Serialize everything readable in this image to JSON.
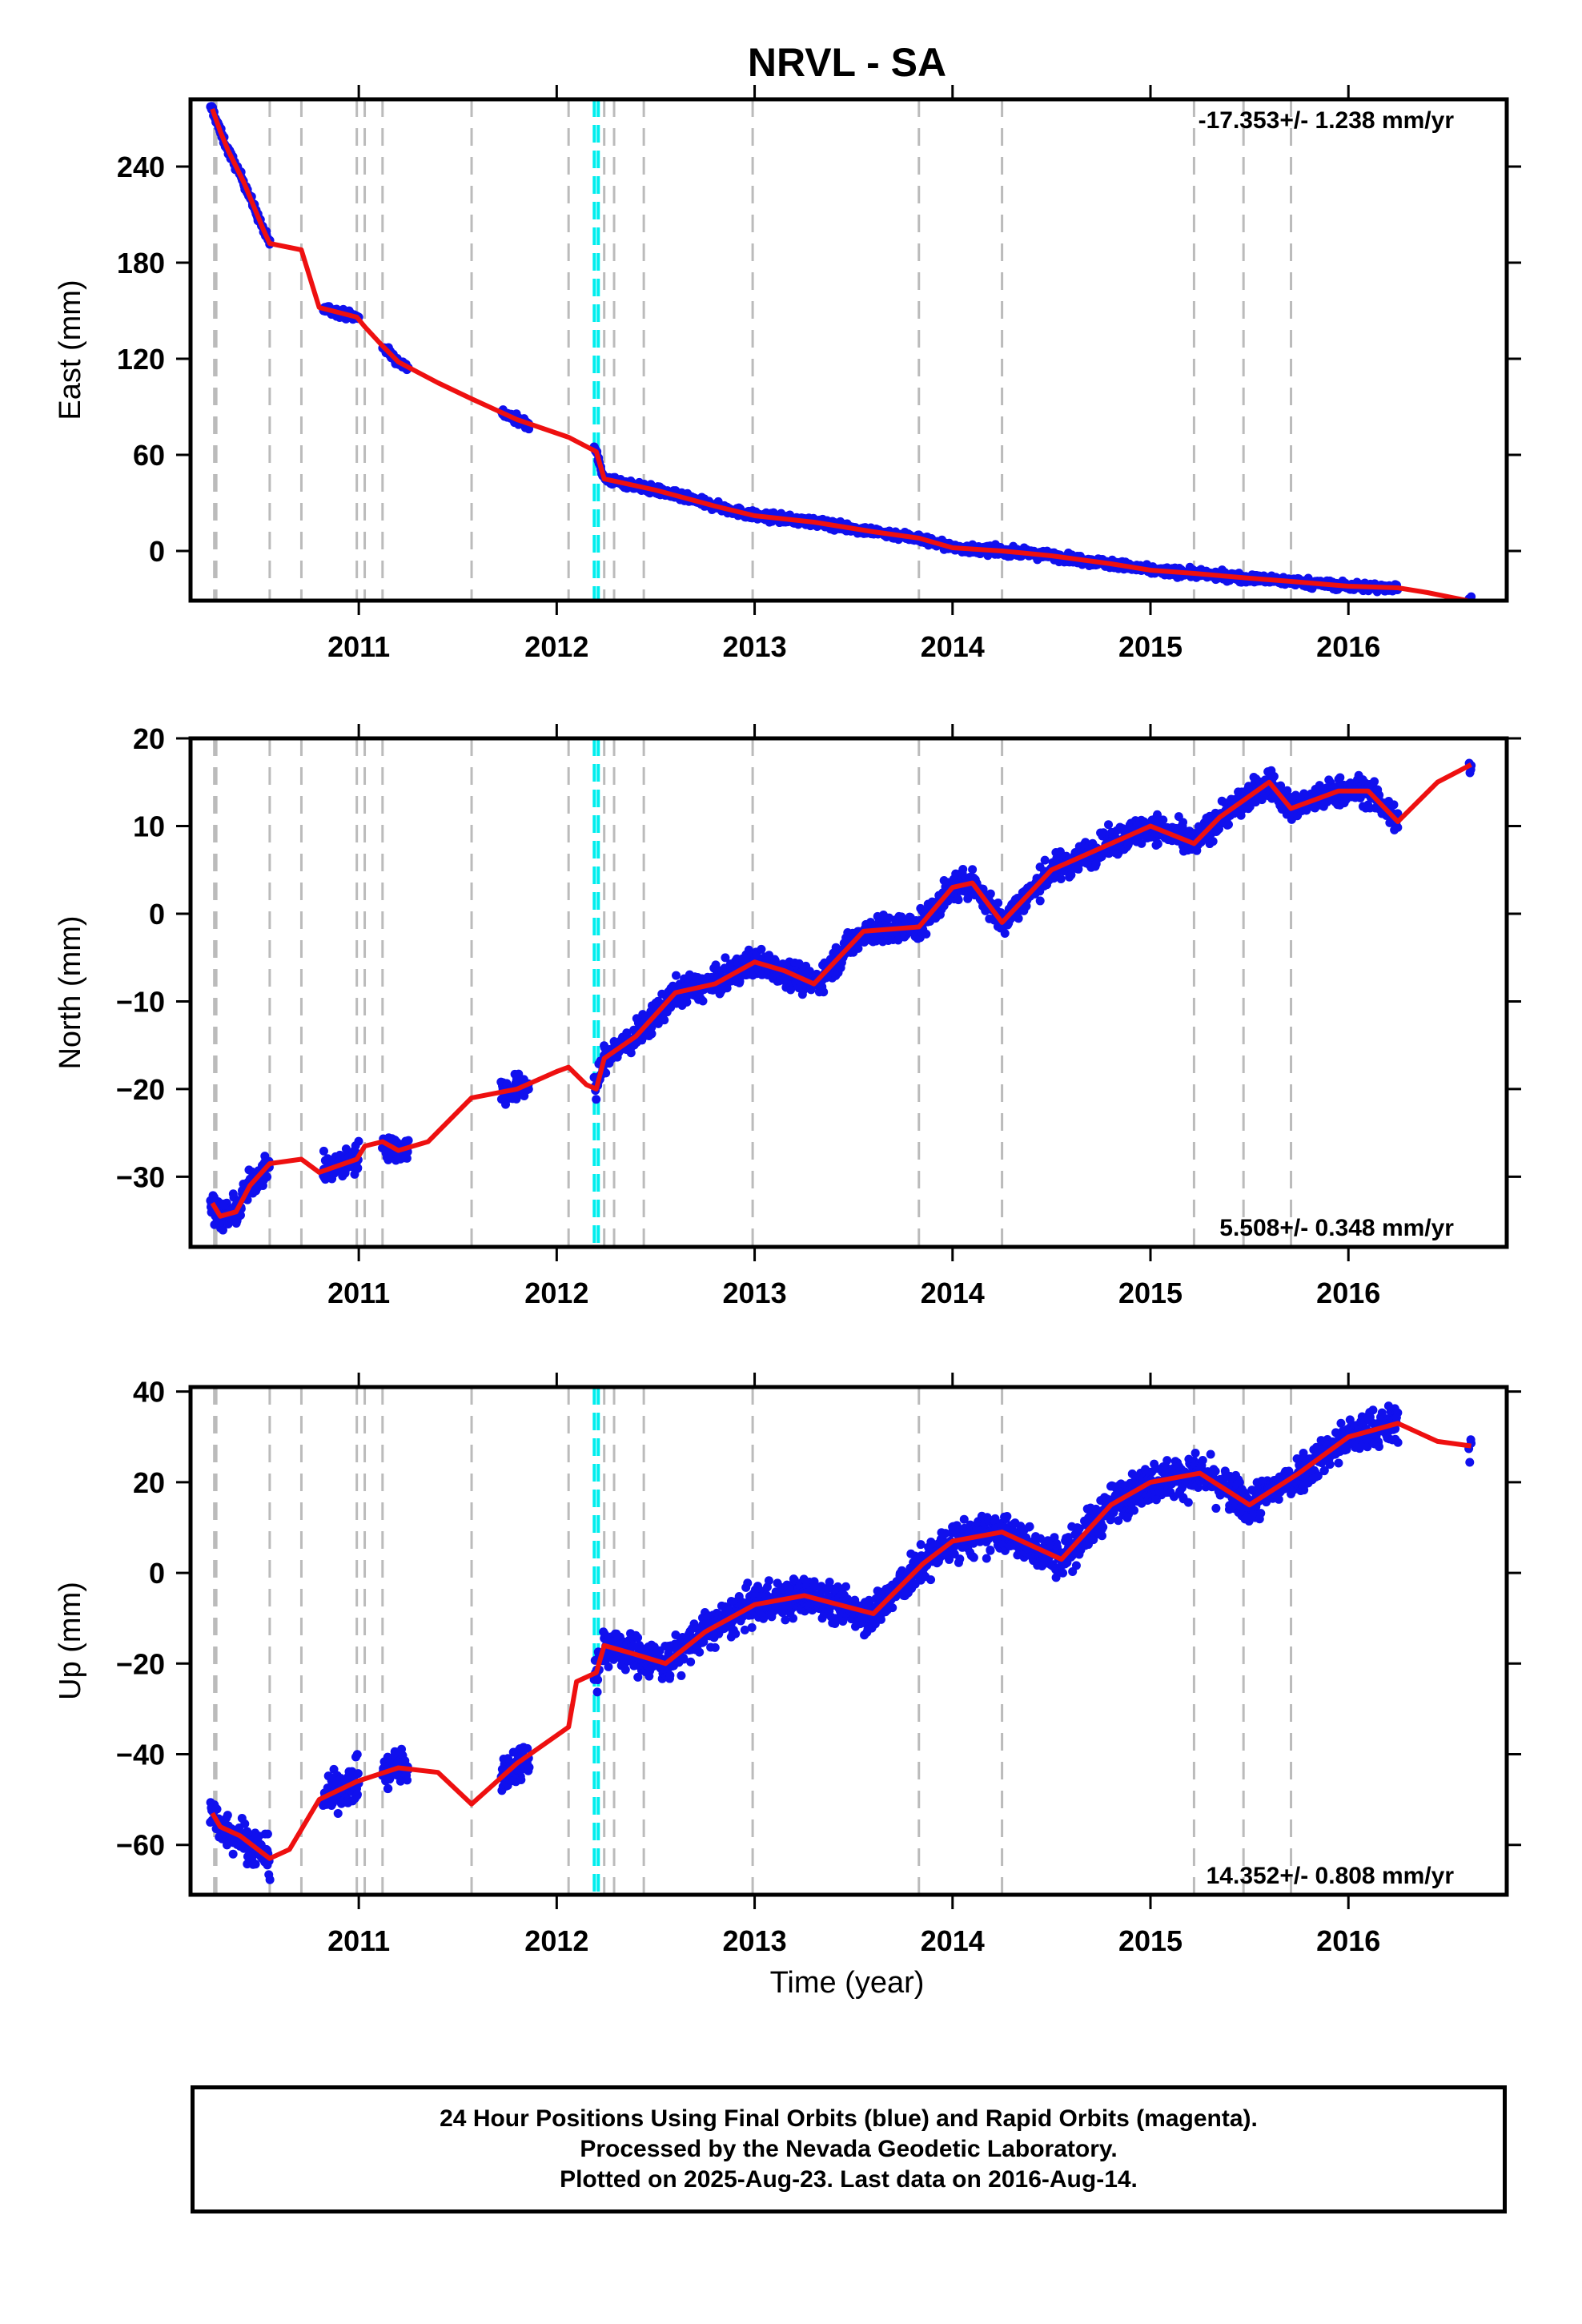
{
  "title": "NRVL - SA",
  "xlabel": "Time (year)",
  "colors": {
    "data": "#1010ee",
    "model": "#ee1010",
    "event_line": "#bbbbbb",
    "equipment_line": "#00eeee",
    "frame": "#000000"
  },
  "x_ticks": [
    2011,
    2012,
    2013,
    2014,
    2015,
    2016
  ],
  "event_lines": [
    2010.27,
    2010.28,
    2010.55,
    2010.71,
    2010.99,
    2011.03,
    2011.12,
    2011.57,
    2012.06,
    2012.24,
    2012.29,
    2012.44,
    2012.99,
    2013.83,
    2014.25,
    2015.22,
    2015.47,
    2015.71
  ],
  "equipment_lines": [
    2012.19,
    2012.21
  ],
  "footer": {
    "line1": "24 Hour Positions Using Final Orbits (blue) and Rapid Orbits (magenta).",
    "line2": "Processed by the Nevada Geodetic Laboratory.",
    "line3": "Plotted on 2025-Aug-23. Last data on 2016-Aug-14."
  },
  "chart_data": [
    {
      "type": "scatter",
      "component": "east",
      "ylabel": "East (mm)",
      "rate_text": "-17.353+/- 1.238 mm/yr",
      "rate_position": "top-right",
      "xlim": [
        2010.15,
        2016.8
      ],
      "ylim": [
        -31,
        282
      ],
      "y_ticks": [
        0,
        60,
        120,
        180,
        240
      ],
      "data_ranges": [
        [
          2010.25,
          2010.55
        ],
        [
          2010.82,
          2011.0
        ],
        [
          2011.12,
          2011.25
        ],
        [
          2011.72,
          2011.86
        ],
        [
          2012.19,
          2016.25
        ],
        [
          2016.61,
          2016.62
        ]
      ],
      "data_noise": 2.5,
      "model": [
        [
          2010.26,
          276
        ],
        [
          2010.3,
          262
        ],
        [
          2010.34,
          250
        ],
        [
          2010.38,
          240
        ],
        [
          2010.42,
          230
        ],
        [
          2010.47,
          215
        ],
        [
          2010.52,
          200
        ],
        [
          2010.55,
          192
        ],
        [
          2010.71,
          188
        ],
        [
          2010.8,
          152
        ],
        [
          2010.99,
          146
        ],
        [
          2011.03,
          140
        ],
        [
          2011.12,
          128
        ],
        [
          2011.2,
          118
        ],
        [
          2011.4,
          105
        ],
        [
          2011.57,
          95
        ],
        [
          2011.8,
          82
        ],
        [
          2012.06,
          71
        ],
        [
          2012.2,
          62
        ],
        [
          2012.24,
          45
        ],
        [
          2012.5,
          38
        ],
        [
          2012.8,
          28
        ],
        [
          2013.0,
          22
        ],
        [
          2013.3,
          18
        ],
        [
          2013.6,
          12
        ],
        [
          2013.83,
          8
        ],
        [
          2014.0,
          2
        ],
        [
          2014.25,
          0
        ],
        [
          2014.5,
          -3
        ],
        [
          2014.8,
          -8
        ],
        [
          2015.0,
          -12
        ],
        [
          2015.22,
          -14
        ],
        [
          2015.5,
          -17
        ],
        [
          2015.71,
          -19
        ],
        [
          2016.0,
          -22
        ],
        [
          2016.25,
          -23
        ],
        [
          2016.4,
          -26
        ],
        [
          2016.6,
          -31
        ]
      ]
    },
    {
      "type": "scatter",
      "component": "north",
      "ylabel": "North (mm)",
      "rate_text": "5.508+/- 0.348 mm/yr",
      "rate_position": "bottom-right",
      "xlim": [
        2010.15,
        2016.8
      ],
      "ylim": [
        -38,
        20
      ],
      "y_ticks": [
        -30,
        -20,
        -10,
        0,
        10,
        20
      ],
      "data_ranges": [
        [
          2010.25,
          2010.55
        ],
        [
          2010.82,
          2011.0
        ],
        [
          2011.12,
          2011.25
        ],
        [
          2011.72,
          2011.86
        ],
        [
          2012.19,
          2016.25
        ],
        [
          2016.61,
          2016.62
        ]
      ],
      "data_noise": 1.5,
      "model": [
        [
          2010.26,
          -33
        ],
        [
          2010.3,
          -34.5
        ],
        [
          2010.38,
          -34
        ],
        [
          2010.45,
          -31
        ],
        [
          2010.55,
          -28.5
        ],
        [
          2010.71,
          -28
        ],
        [
          2010.8,
          -29.5
        ],
        [
          2010.99,
          -28
        ],
        [
          2011.03,
          -26.5
        ],
        [
          2011.12,
          -26
        ],
        [
          2011.2,
          -27
        ],
        [
          2011.35,
          -26
        ],
        [
          2011.57,
          -21
        ],
        [
          2011.8,
          -20
        ],
        [
          2012.0,
          -18
        ],
        [
          2012.06,
          -17.5
        ],
        [
          2012.15,
          -19.5
        ],
        [
          2012.2,
          -20
        ],
        [
          2012.24,
          -16.5
        ],
        [
          2012.4,
          -14
        ],
        [
          2012.6,
          -9
        ],
        [
          2012.8,
          -8
        ],
        [
          2013.0,
          -5.5
        ],
        [
          2013.15,
          -6.5
        ],
        [
          2013.3,
          -8
        ],
        [
          2013.55,
          -2
        ],
        [
          2013.83,
          -1.5
        ],
        [
          2014.0,
          3
        ],
        [
          2014.1,
          3.5
        ],
        [
          2014.25,
          -1
        ],
        [
          2014.5,
          5
        ],
        [
          2014.75,
          7.5
        ],
        [
          2015.0,
          10
        ],
        [
          2015.22,
          8
        ],
        [
          2015.35,
          11
        ],
        [
          2015.6,
          15
        ],
        [
          2015.71,
          12
        ],
        [
          2015.95,
          14
        ],
        [
          2016.1,
          14
        ],
        [
          2016.25,
          10.5
        ],
        [
          2016.45,
          15
        ],
        [
          2016.62,
          17
        ]
      ]
    },
    {
      "type": "scatter",
      "component": "up",
      "ylabel": "Up (mm)",
      "rate_text": "14.352+/- 0.808 mm/yr",
      "rate_position": "bottom-right",
      "xlim": [
        2010.15,
        2016.8
      ],
      "ylim": [
        -71,
        41
      ],
      "y_ticks": [
        -60,
        -40,
        -20,
        0,
        20,
        40
      ],
      "data_ranges": [
        [
          2010.25,
          2010.55
        ],
        [
          2010.82,
          2011.0
        ],
        [
          2011.12,
          2011.25
        ],
        [
          2011.72,
          2011.86
        ],
        [
          2012.19,
          2016.25
        ],
        [
          2016.61,
          2016.62
        ]
      ],
      "data_noise": 4.0,
      "model": [
        [
          2010.26,
          -53
        ],
        [
          2010.3,
          -56
        ],
        [
          2010.4,
          -58
        ],
        [
          2010.55,
          -63
        ],
        [
          2010.65,
          -61
        ],
        [
          2010.8,
          -50
        ],
        [
          2010.99,
          -46
        ],
        [
          2011.2,
          -43
        ],
        [
          2011.4,
          -44
        ],
        [
          2011.57,
          -51
        ],
        [
          2011.8,
          -42
        ],
        [
          2012.06,
          -34
        ],
        [
          2012.1,
          -24
        ],
        [
          2012.2,
          -22
        ],
        [
          2012.24,
          -16
        ],
        [
          2012.4,
          -18
        ],
        [
          2012.55,
          -20
        ],
        [
          2012.75,
          -13
        ],
        [
          2013.0,
          -7
        ],
        [
          2013.25,
          -5
        ],
        [
          2013.6,
          -9
        ],
        [
          2013.85,
          2
        ],
        [
          2014.0,
          7
        ],
        [
          2014.25,
          9
        ],
        [
          2014.55,
          3
        ],
        [
          2014.8,
          15
        ],
        [
          2015.0,
          20
        ],
        [
          2015.25,
          22
        ],
        [
          2015.5,
          15
        ],
        [
          2015.75,
          22
        ],
        [
          2016.0,
          30
        ],
        [
          2016.25,
          33
        ],
        [
          2016.45,
          29
        ],
        [
          2016.62,
          28
        ]
      ]
    }
  ]
}
